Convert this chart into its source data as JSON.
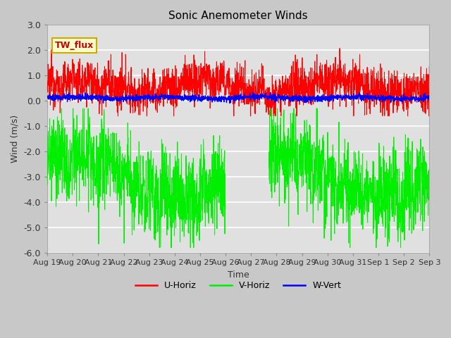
{
  "title": "Sonic Anemometer Winds",
  "xlabel": "Time",
  "ylabel": "Wind (m/s)",
  "ylim": [
    -6.0,
    3.0
  ],
  "yticks": [
    -6.0,
    -5.0,
    -4.0,
    -3.0,
    -2.0,
    -1.0,
    0.0,
    1.0,
    2.0,
    3.0
  ],
  "annotation_text": "TW_flux",
  "bg_color": "#c8c8c8",
  "plot_bg_color": "#e0e0e0",
  "grid_color": "#ffffff",
  "colors": {
    "U-Horiz": "#ff0000",
    "V-Horiz": "#00ee00",
    "W-Vert": "#0000ff"
  },
  "x_tick_labels": [
    "Aug 19",
    "Aug 20",
    "Aug 21",
    "Aug 22",
    "Aug 23",
    "Aug 24",
    "Aug 25",
    "Aug 26",
    "Aug 27",
    "Aug 28",
    "Aug 29",
    "Aug 30",
    "Aug 31",
    "Sep 1",
    "Sep 2",
    "Sep 3"
  ],
  "x_tick_positions": [
    0,
    1,
    2,
    3,
    4,
    5,
    6,
    7,
    8,
    9,
    10,
    11,
    12,
    13,
    14,
    15
  ]
}
